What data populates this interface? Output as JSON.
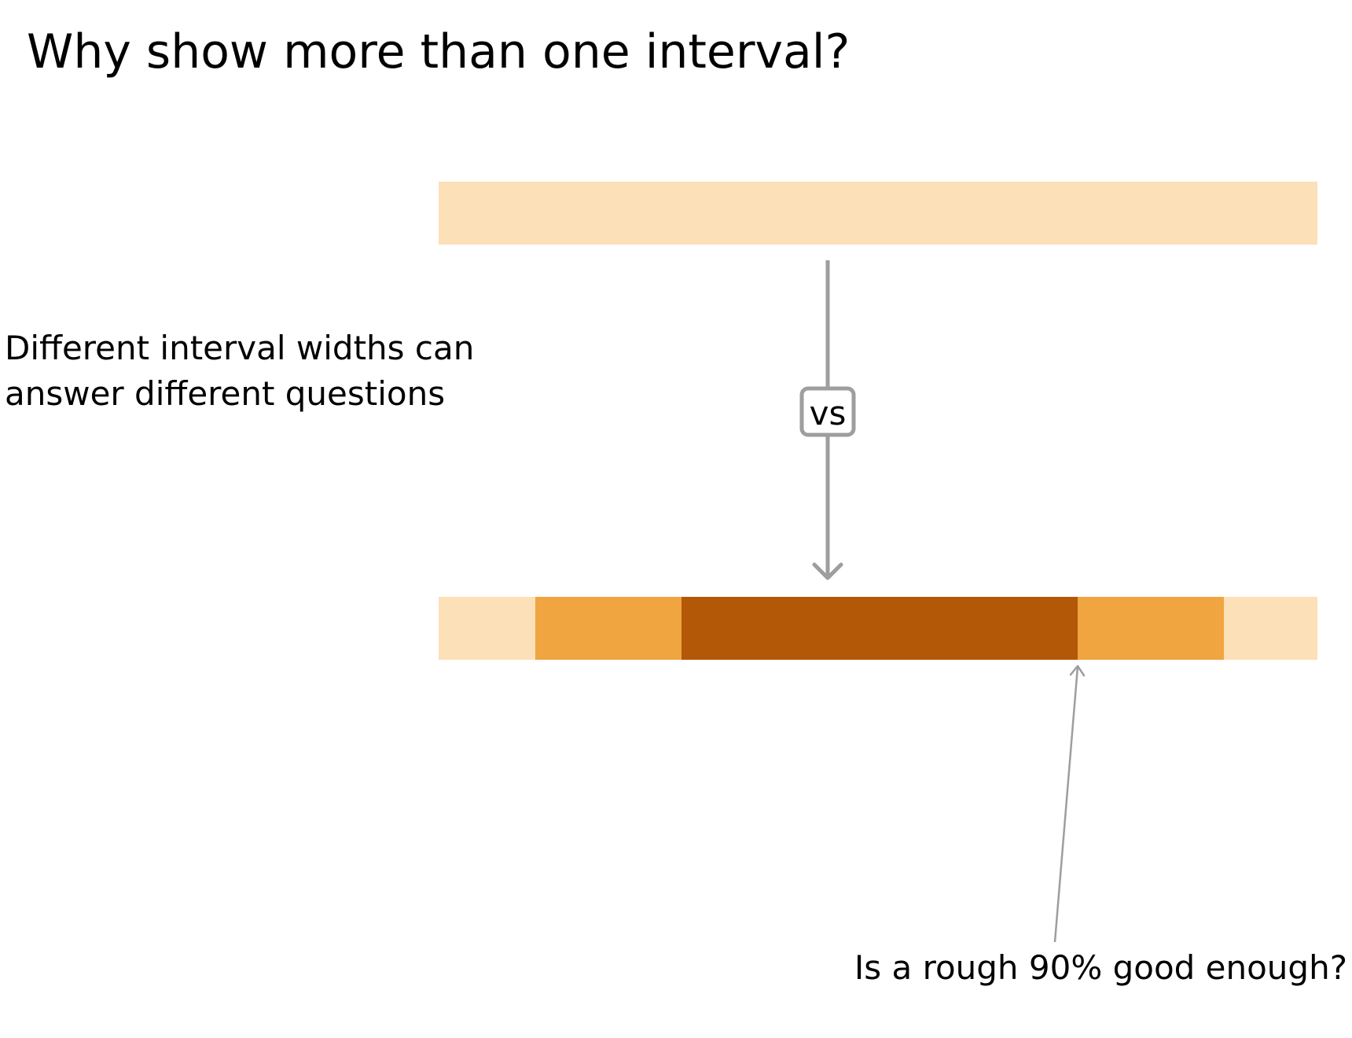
{
  "title": "Why show more than one interval?",
  "left_text": {
    "line1": "Different interval widths can",
    "line2": "answer different questions"
  },
  "vs_label": "vs",
  "bottom_question": "Is a rough 90% good enough?",
  "colors": {
    "light": "#fce0b8",
    "medium": "#f0a540",
    "dark": "#b35806",
    "arrow": "#9e9e9e"
  },
  "intervals": {
    "top_bar": [
      "light"
    ],
    "bottom_bar": [
      "light",
      "medium",
      "dark",
      "medium",
      "light"
    ]
  }
}
